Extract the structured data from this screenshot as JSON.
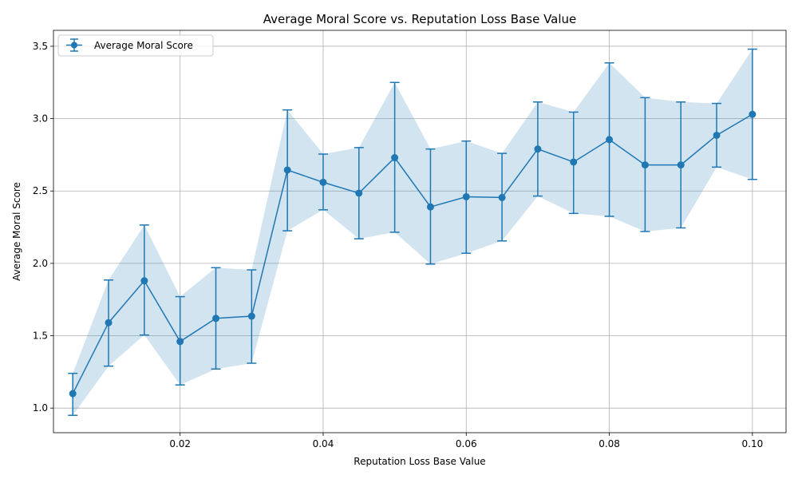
{
  "chart_data": {
    "type": "line",
    "title": "Average Moral Score vs. Reputation Loss Base Value",
    "xlabel": "Reputation Loss Base Value",
    "ylabel": "Average Moral Score",
    "xlim": [
      0.0023,
      0.1047
    ],
    "ylim": [
      0.83,
      3.61
    ],
    "xticks": [
      "0.02",
      "0.04",
      "0.06",
      "0.08",
      "0.10"
    ],
    "xtick_values": [
      0.02,
      0.04,
      0.06,
      0.08,
      0.1
    ],
    "yticks": [
      "1.0",
      "1.5",
      "2.0",
      "2.5",
      "3.0",
      "3.5"
    ],
    "ytick_values": [
      1.0,
      1.5,
      2.0,
      2.5,
      3.0,
      3.5
    ],
    "grid": true,
    "legend_position": "top-left",
    "colors": {
      "line": "#1f77b4",
      "band": "#1f77b4"
    },
    "series": [
      {
        "name": "Average Moral Score",
        "x": [
          0.005,
          0.01,
          0.015,
          0.02,
          0.025,
          0.03,
          0.035,
          0.04,
          0.045,
          0.05,
          0.055,
          0.06,
          0.065,
          0.07,
          0.075,
          0.08,
          0.085,
          0.09,
          0.095,
          0.1
        ],
        "y": [
          1.1,
          1.59,
          1.88,
          1.46,
          1.62,
          1.635,
          2.645,
          2.56,
          2.485,
          2.73,
          2.39,
          2.46,
          2.455,
          2.79,
          2.7,
          2.855,
          2.68,
          2.68,
          2.885,
          3.03
        ],
        "y_lower": [
          0.95,
          1.29,
          1.505,
          1.16,
          1.27,
          1.31,
          2.225,
          2.37,
          2.17,
          2.215,
          1.995,
          2.07,
          2.155,
          2.465,
          2.345,
          2.325,
          2.22,
          2.245,
          2.665,
          2.58
        ],
        "y_upper": [
          1.24,
          1.885,
          2.265,
          1.77,
          1.97,
          1.955,
          3.06,
          2.755,
          2.8,
          3.25,
          2.79,
          2.845,
          2.76,
          3.115,
          3.045,
          3.385,
          3.145,
          3.115,
          3.105,
          3.48
        ]
      }
    ]
  }
}
